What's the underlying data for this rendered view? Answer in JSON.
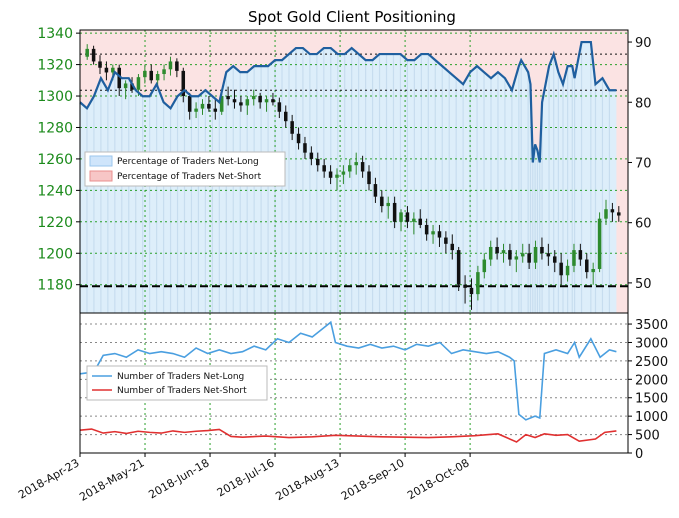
{
  "chart_data": [
    {
      "type": "candlestick+line",
      "title": "Spot Gold Client Positioning",
      "price_axis": {
        "ylim": [
          1162,
          1342
        ],
        "ticks": [
          1180,
          1200,
          1220,
          1240,
          1260,
          1280,
          1300,
          1320,
          1340
        ]
      },
      "percent_axis": {
        "ylim": [
          45,
          92
        ],
        "ticks": [
          50,
          60,
          70,
          80,
          90
        ]
      },
      "horizontal_lines": {
        "dashed_price": 1179,
        "dotted_percent": [
          82,
          88
        ]
      },
      "legend": {
        "placement": "middle-left",
        "entries": [
          "Percentage of Traders Net-Long",
          "Percentage of Traders Net-Short"
        ]
      },
      "net_long_percent_series": [
        [
          0,
          80
        ],
        [
          3,
          79
        ],
        [
          6,
          81
        ],
        [
          9,
          84
        ],
        [
          12,
          82
        ],
        [
          15,
          85
        ],
        [
          18,
          84
        ],
        [
          21,
          84
        ],
        [
          24,
          82
        ],
        [
          27,
          81
        ],
        [
          30,
          81
        ],
        [
          33,
          83
        ],
        [
          36,
          80
        ],
        [
          39,
          79
        ],
        [
          42,
          81
        ],
        [
          45,
          82
        ],
        [
          48,
          81
        ],
        [
          51,
          81
        ],
        [
          54,
          82
        ],
        [
          57,
          81
        ],
        [
          60,
          80
        ],
        [
          63,
          85
        ],
        [
          66,
          86
        ],
        [
          69,
          85
        ],
        [
          72,
          85
        ],
        [
          75,
          86
        ],
        [
          78,
          86
        ],
        [
          81,
          86
        ],
        [
          84,
          87
        ],
        [
          87,
          87
        ],
        [
          90,
          88
        ],
        [
          93,
          89
        ],
        [
          96,
          89
        ],
        [
          99,
          88
        ],
        [
          102,
          88
        ],
        [
          105,
          89
        ],
        [
          108,
          89
        ],
        [
          111,
          88
        ],
        [
          114,
          88
        ],
        [
          117,
          89
        ],
        [
          120,
          88
        ],
        [
          123,
          87
        ],
        [
          126,
          87
        ],
        [
          129,
          88
        ],
        [
          132,
          88
        ],
        [
          135,
          88
        ],
        [
          138,
          88
        ],
        [
          141,
          87
        ],
        [
          144,
          87
        ],
        [
          147,
          88
        ],
        [
          150,
          88
        ],
        [
          153,
          87
        ],
        [
          156,
          86
        ],
        [
          159,
          85
        ],
        [
          162,
          84
        ],
        [
          165,
          83
        ],
        [
          168,
          85
        ],
        [
          171,
          86
        ],
        [
          174,
          85
        ],
        [
          177,
          84
        ],
        [
          180,
          85
        ],
        [
          183,
          84
        ],
        [
          186,
          82
        ],
        [
          189,
          86
        ],
        [
          190,
          87
        ],
        [
          193,
          85
        ],
        [
          194,
          83
        ],
        [
          195,
          70
        ],
        [
          196,
          73
        ],
        [
          197,
          72
        ],
        [
          198,
          70
        ],
        [
          199,
          80
        ],
        [
          202,
          86
        ],
        [
          204,
          88
        ],
        [
          206,
          85
        ],
        [
          208,
          83
        ],
        [
          210,
          86
        ],
        [
          212,
          86
        ],
        [
          213,
          84
        ],
        [
          216,
          90
        ],
        [
          220,
          90
        ],
        [
          222,
          83
        ],
        [
          225,
          84
        ],
        [
          228,
          82
        ],
        [
          231,
          82
        ]
      ],
      "candles_ohlc": [
        [
          1325,
          1333,
          1323,
          1330
        ],
        [
          1330,
          1332,
          1320,
          1322
        ],
        [
          1322,
          1326,
          1314,
          1318
        ],
        [
          1318,
          1322,
          1310,
          1315
        ],
        [
          1315,
          1320,
          1310,
          1318
        ],
        [
          1318,
          1320,
          1300,
          1305
        ],
        [
          1305,
          1310,
          1298,
          1308
        ],
        [
          1308,
          1312,
          1302,
          1304
        ],
        [
          1304,
          1314,
          1300,
          1312
        ],
        [
          1312,
          1320,
          1308,
          1316
        ],
        [
          1316,
          1320,
          1308,
          1310
        ],
        [
          1310,
          1316,
          1306,
          1314
        ],
        [
          1314,
          1320,
          1310,
          1317
        ],
        [
          1317,
          1325,
          1313,
          1322
        ],
        [
          1322,
          1324,
          1312,
          1316
        ],
        [
          1316,
          1318,
          1296,
          1300
        ],
        [
          1300,
          1302,
          1285,
          1290
        ],
        [
          1290,
          1296,
          1286,
          1292
        ],
        [
          1292,
          1298,
          1288,
          1295
        ],
        [
          1295,
          1300,
          1290,
          1292
        ],
        [
          1292,
          1298,
          1285,
          1290
        ],
        [
          1290,
          1302,
          1288,
          1300
        ],
        [
          1300,
          1306,
          1294,
          1298
        ],
        [
          1298,
          1304,
          1292,
          1296
        ],
        [
          1296,
          1300,
          1290,
          1294
        ],
        [
          1294,
          1300,
          1288,
          1298
        ],
        [
          1298,
          1304,
          1294,
          1300
        ],
        [
          1300,
          1302,
          1292,
          1296
        ],
        [
          1296,
          1300,
          1290,
          1298
        ],
        [
          1298,
          1302,
          1294,
          1296
        ],
        [
          1296,
          1299,
          1286,
          1290
        ],
        [
          1290,
          1294,
          1280,
          1284
        ],
        [
          1284,
          1288,
          1272,
          1276
        ],
        [
          1276,
          1280,
          1266,
          1270
        ],
        [
          1270,
          1274,
          1260,
          1264
        ],
        [
          1264,
          1268,
          1256,
          1260
        ],
        [
          1260,
          1264,
          1252,
          1256
        ],
        [
          1256,
          1260,
          1248,
          1252
        ],
        [
          1252,
          1256,
          1244,
          1248
        ],
        [
          1248,
          1254,
          1240,
          1250
        ],
        [
          1250,
          1256,
          1244,
          1252
        ],
        [
          1252,
          1260,
          1248,
          1256
        ],
        [
          1256,
          1264,
          1250,
          1258
        ],
        [
          1258,
          1262,
          1248,
          1252
        ],
        [
          1252,
          1256,
          1240,
          1244
        ],
        [
          1244,
          1248,
          1232,
          1236
        ],
        [
          1236,
          1240,
          1226,
          1230
        ],
        [
          1230,
          1236,
          1222,
          1232
        ],
        [
          1232,
          1236,
          1216,
          1220
        ],
        [
          1220,
          1228,
          1214,
          1226
        ],
        [
          1226,
          1230,
          1216,
          1220
        ],
        [
          1220,
          1226,
          1212,
          1222
        ],
        [
          1222,
          1228,
          1216,
          1218
        ],
        [
          1218,
          1222,
          1208,
          1212
        ],
        [
          1212,
          1218,
          1206,
          1214
        ],
        [
          1214,
          1218,
          1204,
          1210
        ],
        [
          1210,
          1214,
          1200,
          1206
        ],
        [
          1206,
          1212,
          1196,
          1202
        ],
        [
          1202,
          1204,
          1176,
          1180
        ],
        [
          1180,
          1186,
          1168,
          1178
        ],
        [
          1178,
          1184,
          1164,
          1174
        ],
        [
          1174,
          1192,
          1170,
          1188
        ],
        [
          1188,
          1200,
          1184,
          1196
        ],
        [
          1196,
          1208,
          1192,
          1204
        ],
        [
          1204,
          1210,
          1196,
          1200
        ],
        [
          1200,
          1206,
          1194,
          1202
        ],
        [
          1202,
          1206,
          1192,
          1196
        ],
        [
          1196,
          1202,
          1188,
          1198
        ],
        [
          1198,
          1206,
          1194,
          1200
        ],
        [
          1200,
          1206,
          1190,
          1194
        ],
        [
          1194,
          1208,
          1190,
          1204
        ],
        [
          1204,
          1210,
          1196,
          1200
        ],
        [
          1200,
          1206,
          1192,
          1198
        ],
        [
          1198,
          1202,
          1188,
          1194
        ],
        [
          1194,
          1200,
          1180,
          1186
        ],
        [
          1186,
          1196,
          1182,
          1192
        ],
        [
          1192,
          1206,
          1188,
          1202
        ],
        [
          1202,
          1206,
          1192,
          1196
        ],
        [
          1196,
          1200,
          1184,
          1188
        ],
        [
          1188,
          1194,
          1180,
          1190
        ],
        [
          1190,
          1226,
          1188,
          1222
        ],
        [
          1222,
          1234,
          1218,
          1228
        ],
        [
          1228,
          1232,
          1220,
          1226
        ],
        [
          1226,
          1230,
          1220,
          1224
        ]
      ]
    },
    {
      "type": "line",
      "ylim": [
        0,
        3800
      ],
      "y_ticks": [
        0,
        500,
        1000,
        1500,
        2000,
        2500,
        3000,
        3500
      ],
      "legend": {
        "placement": "middle-left"
      },
      "series": [
        {
          "name": "Number of Traders Net-Long",
          "color": "#4a9fe0",
          "values": [
            [
              0,
              2150
            ],
            [
              6,
              2200
            ],
            [
              10,
              2650
            ],
            [
              15,
              2700
            ],
            [
              20,
              2600
            ],
            [
              25,
              2800
            ],
            [
              30,
              2700
            ],
            [
              35,
              2750
            ],
            [
              40,
              2700
            ],
            [
              45,
              2600
            ],
            [
              50,
              2850
            ],
            [
              55,
              2700
            ],
            [
              60,
              2800
            ],
            [
              65,
              2700
            ],
            [
              70,
              2750
            ],
            [
              75,
              2900
            ],
            [
              80,
              2800
            ],
            [
              85,
              3100
            ],
            [
              90,
              3000
            ],
            [
              95,
              3250
            ],
            [
              100,
              3150
            ],
            [
              105,
              3400
            ],
            [
              108,
              3550
            ],
            [
              110,
              3000
            ],
            [
              115,
              2900
            ],
            [
              120,
              2850
            ],
            [
              125,
              2950
            ],
            [
              130,
              2850
            ],
            [
              135,
              2900
            ],
            [
              140,
              2800
            ],
            [
              145,
              2950
            ],
            [
              150,
              2900
            ],
            [
              155,
              3000
            ],
            [
              160,
              2700
            ],
            [
              165,
              2800
            ],
            [
              170,
              2750
            ],
            [
              175,
              2700
            ],
            [
              180,
              2750
            ],
            [
              185,
              2600
            ],
            [
              187,
              2500
            ],
            [
              189,
              1050
            ],
            [
              192,
              900
            ],
            [
              196,
              1000
            ],
            [
              198,
              950
            ],
            [
              200,
              2700
            ],
            [
              205,
              2800
            ],
            [
              210,
              2700
            ],
            [
              213,
              3000
            ],
            [
              215,
              2600
            ],
            [
              220,
              3100
            ],
            [
              224,
              2600
            ],
            [
              228,
              2800
            ],
            [
              231,
              2750
            ]
          ]
        },
        {
          "name": "Number of Traders Net-Short",
          "color": "#e03030",
          "values": [
            [
              0,
              620
            ],
            [
              5,
              650
            ],
            [
              10,
              540
            ],
            [
              15,
              580
            ],
            [
              20,
              530
            ],
            [
              25,
              590
            ],
            [
              30,
              560
            ],
            [
              35,
              540
            ],
            [
              40,
              600
            ],
            [
              45,
              560
            ],
            [
              50,
              590
            ],
            [
              55,
              610
            ],
            [
              60,
              640
            ],
            [
              65,
              450
            ],
            [
              70,
              430
            ],
            [
              80,
              460
            ],
            [
              90,
              420
            ],
            [
              100,
              440
            ],
            [
              110,
              480
            ],
            [
              120,
              460
            ],
            [
              130,
              440
            ],
            [
              140,
              430
            ],
            [
              150,
              420
            ],
            [
              160,
              440
            ],
            [
              170,
              470
            ],
            [
              180,
              520
            ],
            [
              188,
              300
            ],
            [
              192,
              500
            ],
            [
              196,
              420
            ],
            [
              200,
              520
            ],
            [
              205,
              480
            ],
            [
              210,
              500
            ],
            [
              215,
              320
            ],
            [
              222,
              380
            ],
            [
              226,
              560
            ],
            [
              231,
              600
            ]
          ]
        }
      ]
    }
  ],
  "x_axis": {
    "range": [
      0,
      236
    ],
    "tick_labels": [
      "2018-Apr-23",
      "2018-May-21",
      "2018-Jun-18",
      "2018-Jul-16",
      "2018-Aug-13",
      "2018-Sep-10",
      "2018-Oct-08"
    ],
    "tick_positions": [
      0,
      28,
      56,
      84,
      112,
      140,
      168
    ]
  },
  "colors": {
    "price_axis": "#1b8a1b",
    "net_long_fill": "#ddeefa",
    "net_short_fill": "#fbe3e3",
    "percent_line": "#1f5f9f",
    "candle_bull": "#2e8b2e",
    "candle_bear": "#111111",
    "grid_green": "#2aa02a",
    "grid_gray": "#888888"
  },
  "ui": {
    "legend_top": [
      "Percentage of Traders Net-Long",
      "Percentage of Traders Net-Short"
    ],
    "legend_bottom": [
      "Number of Traders Net-Long",
      "Number of Traders Net-Short"
    ]
  }
}
